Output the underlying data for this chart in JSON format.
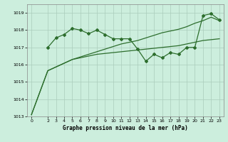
{
  "title": "Graphe pression niveau de la mer (hPa)",
  "background_color": "#cceedd",
  "grid_color": "#aaccbb",
  "line_color": "#2d6e2d",
  "xlim": [
    -0.5,
    23.5
  ],
  "ylim": [
    1013,
    1019.5
  ],
  "xticks": [
    0,
    2,
    3,
    4,
    5,
    6,
    7,
    8,
    9,
    10,
    11,
    12,
    13,
    14,
    15,
    16,
    17,
    18,
    19,
    20,
    21,
    22,
    23
  ],
  "yticks": [
    1013,
    1014,
    1015,
    1016,
    1017,
    1018,
    1019
  ],
  "series": {
    "line1_x": [
      0,
      2,
      5,
      6,
      7,
      8,
      9,
      10,
      11,
      12,
      13,
      14,
      15,
      16,
      17,
      18,
      19,
      20,
      21,
      22,
      23
    ],
    "line1_y": [
      1013.1,
      1015.65,
      1016.3,
      1016.4,
      1016.5,
      1016.6,
      1016.65,
      1016.7,
      1016.75,
      1016.8,
      1016.85,
      1016.9,
      1016.95,
      1017.0,
      1017.05,
      1017.1,
      1017.2,
      1017.3,
      1017.4,
      1017.45,
      1017.5
    ],
    "line2_x": [
      0,
      2,
      5,
      6,
      7,
      8,
      9,
      10,
      11,
      12,
      13,
      14,
      15,
      16,
      17,
      18,
      19,
      20,
      21,
      22,
      23
    ],
    "line2_y": [
      1013.1,
      1015.65,
      1016.3,
      1016.45,
      1016.6,
      1016.75,
      1016.9,
      1017.05,
      1017.2,
      1017.3,
      1017.4,
      1017.55,
      1017.7,
      1017.85,
      1017.95,
      1018.05,
      1018.2,
      1018.4,
      1018.55,
      1018.75,
      1018.55
    ],
    "line3_x": [
      2,
      3,
      4,
      5,
      6,
      7,
      8,
      9,
      10,
      11,
      12,
      13,
      14,
      15,
      16,
      17,
      18,
      19,
      20,
      21,
      22,
      23
    ],
    "line3_y": [
      1017.0,
      1017.55,
      1017.75,
      1018.1,
      1018.0,
      1017.8,
      1018.0,
      1017.75,
      1017.5,
      1017.5,
      1017.5,
      1016.9,
      1016.2,
      1016.6,
      1016.4,
      1016.7,
      1016.6,
      1017.0,
      1017.0,
      1018.85,
      1018.95,
      1018.6
    ]
  }
}
